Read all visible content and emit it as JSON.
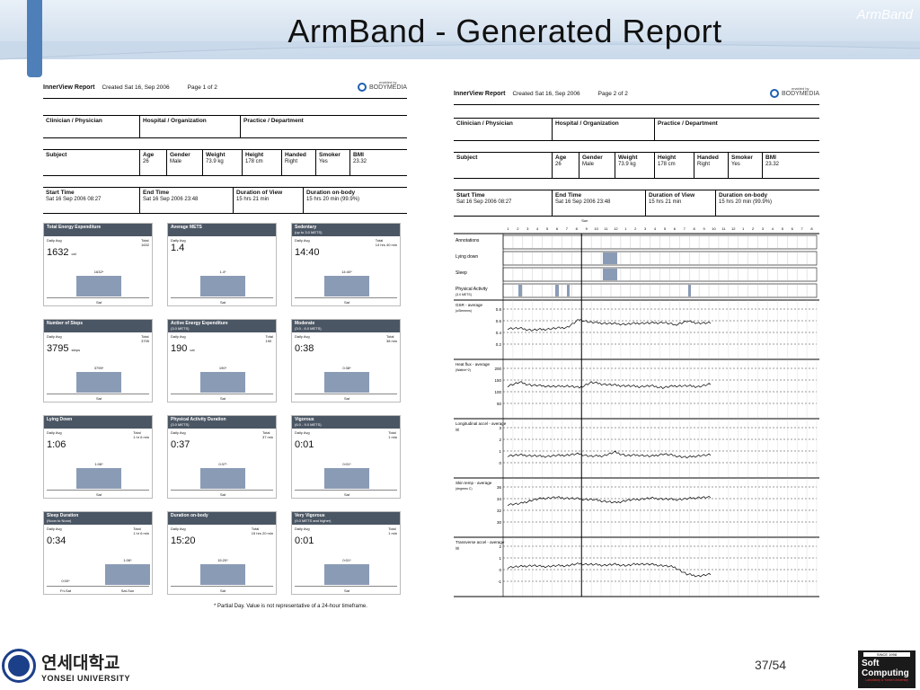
{
  "brand_corner": "ArmBand",
  "slide_title": "ArmBand - Generated Report",
  "report": {
    "name": "InnerView Report",
    "created": "Created Sat 16, Sep 2006",
    "page1": "Page 1 of 2",
    "page2": "Page 2 of 2",
    "logo_enabled": "enabled by",
    "logo_text": "BODYMEDIA",
    "clinician": "Clinician / Physician",
    "hospital": "Hospital / Organization",
    "practice": "Practice / Department",
    "subject": "Subject",
    "age_h": "Age",
    "age": "26",
    "gender_h": "Gender",
    "gender": "Male",
    "weight_h": "Weight",
    "weight": "73.9 kg",
    "height_h": "Height",
    "height": "178 cm",
    "handed_h": "Handed",
    "handed": "Right",
    "smoker_h": "Smoker",
    "smoker": "Yes",
    "bmi_h": "BMI",
    "bmi": "23.32",
    "start_h": "Start Time",
    "start": "Sat 16 Sep 2006 08:27",
    "end_h": "End Time",
    "end": "Sat 16 Sep 2006 23:48",
    "dov_h": "Duration of View",
    "dov": "15 hrs 21 min",
    "dob_h": "Duration on-body",
    "dob": "15 hrs 20 min  (99.9%)"
  },
  "cards": [
    {
      "title": "Total Energy Expenditure",
      "sub": "",
      "avg": "1632",
      "unit": "cal",
      "total": "Total\n1632",
      "bar": "1632*",
      "frac": 0.6,
      "cat": "Sat"
    },
    {
      "title": "Average METS",
      "sub": "",
      "avg": "1.4",
      "unit": "",
      "total": "",
      "bar": "1.4*",
      "frac": 0.6,
      "cat": "Sat"
    },
    {
      "title": "Sedentary",
      "sub": "(up to 3.0 METS)",
      "avg": "14:40",
      "unit": "",
      "total": "Total\n14 hrs 40 min",
      "bar": "14:40*",
      "frac": 0.6,
      "cat": "Sat"
    },
    {
      "title": "Number of Steps",
      "sub": "",
      "avg": "3795",
      "unit": "steps",
      "total": "Total\n3795",
      "bar": "3795*",
      "frac": 0.6,
      "cat": "Sat"
    },
    {
      "title": "Active Energy Expenditure",
      "sub": "(3.0 METS)",
      "avg": "190",
      "unit": "cal",
      "total": "Total\n190",
      "bar": "190*",
      "frac": 0.6,
      "cat": "Sat"
    },
    {
      "title": "Moderate",
      "sub": "(3.0 - 6.0 METS)",
      "avg": "0:38",
      "unit": "",
      "total": "Total\n38 min",
      "bar": "0:38*",
      "frac": 0.6,
      "cat": "Sat"
    },
    {
      "title": "Lying Down",
      "sub": "",
      "avg": "1:06",
      "unit": "",
      "total": "Total\n1 hr 6 min",
      "bar": "1:06*",
      "frac": 0.6,
      "cat": "Sat"
    },
    {
      "title": "Physical Activity Duration",
      "sub": "(3.0 METS)",
      "avg": "0:37",
      "unit": "",
      "total": "Total\n37 min",
      "bar": "0:37*",
      "frac": 0.6,
      "cat": "Sat"
    },
    {
      "title": "Vigorous",
      "sub": "(6.0 - 9.0 METS)",
      "avg": "0:01",
      "unit": "",
      "total": "Total\n1 min",
      "bar": "0:01*",
      "frac": 0.6,
      "cat": "Sat"
    },
    {
      "title": "Sleep Duration",
      "sub": "(Noon to Noon)",
      "avg": "0:34",
      "unit": "",
      "total": "Total\n1 hr 6 min",
      "bar": "1:06*",
      "frac": 0.6,
      "cat": "Sat-Sun",
      "bar2": "0:00*",
      "cat2": "Fri-Sat"
    },
    {
      "title": "Duration on-body",
      "sub": "",
      "avg": "15:20",
      "unit": "",
      "total": "Total\n15 hrs 20 min",
      "bar": "15:20*",
      "frac": 0.6,
      "cat": "Sat"
    },
    {
      "title": "Very Vigorous",
      "sub": "(9.0 METS and higher)",
      "avg": "0:01",
      "unit": "",
      "total": "Total\n1 min",
      "bar": "0:01*",
      "frac": 0.6,
      "cat": "Sat"
    }
  ],
  "daily_avg": "Daily Avg",
  "footnote": "* Partial Day.  Value is not representative of a 24-hour timeframe.",
  "timeline": {
    "sun": "Sun",
    "hours": [
      "1",
      "2",
      "3",
      "4",
      "5",
      "6",
      "7",
      "8",
      "9",
      "10",
      "11",
      "12",
      "1",
      "2",
      "3",
      "4",
      "5",
      "6",
      "7",
      "8",
      "9",
      "10",
      "11",
      "12",
      "1",
      "2",
      "3",
      "4",
      "5",
      "6",
      "7",
      "8"
    ],
    "tracks": [
      "Annotations",
      "Lying down",
      "Sleep",
      "Physical Activity"
    ],
    "pa_sub": "(3.0 METS)",
    "charts": [
      {
        "label": "GSR - average",
        "unit": "(uSiemens)",
        "ticks": [
          "0.8",
          "0.6",
          "0.4",
          "0.2"
        ]
      },
      {
        "label": "Heat flux - average",
        "unit": "(Watt/m^2)",
        "ticks": [
          "200",
          "150",
          "100",
          "50"
        ]
      },
      {
        "label": "Longitudinal accel - average",
        "unit": "(g)",
        "ticks": [
          "3",
          "2",
          "1",
          "0"
        ]
      },
      {
        "label": "Skin temp - average",
        "unit": "(degrees C)",
        "ticks": [
          "36",
          "34",
          "32",
          "30"
        ]
      },
      {
        "label": "Transverse accel - average",
        "unit": "(g)",
        "ticks": [
          "2",
          "1",
          "0",
          "-1"
        ]
      }
    ]
  },
  "university_ko": "연세대학교",
  "university_en": "YONSEI UNIVERSITY",
  "page_number": "37/54",
  "lab": {
    "since": "SINCE 1998",
    "w1": "Soft",
    "w2": "Computing",
    "lab": "Laboratory & Yonsei University"
  }
}
